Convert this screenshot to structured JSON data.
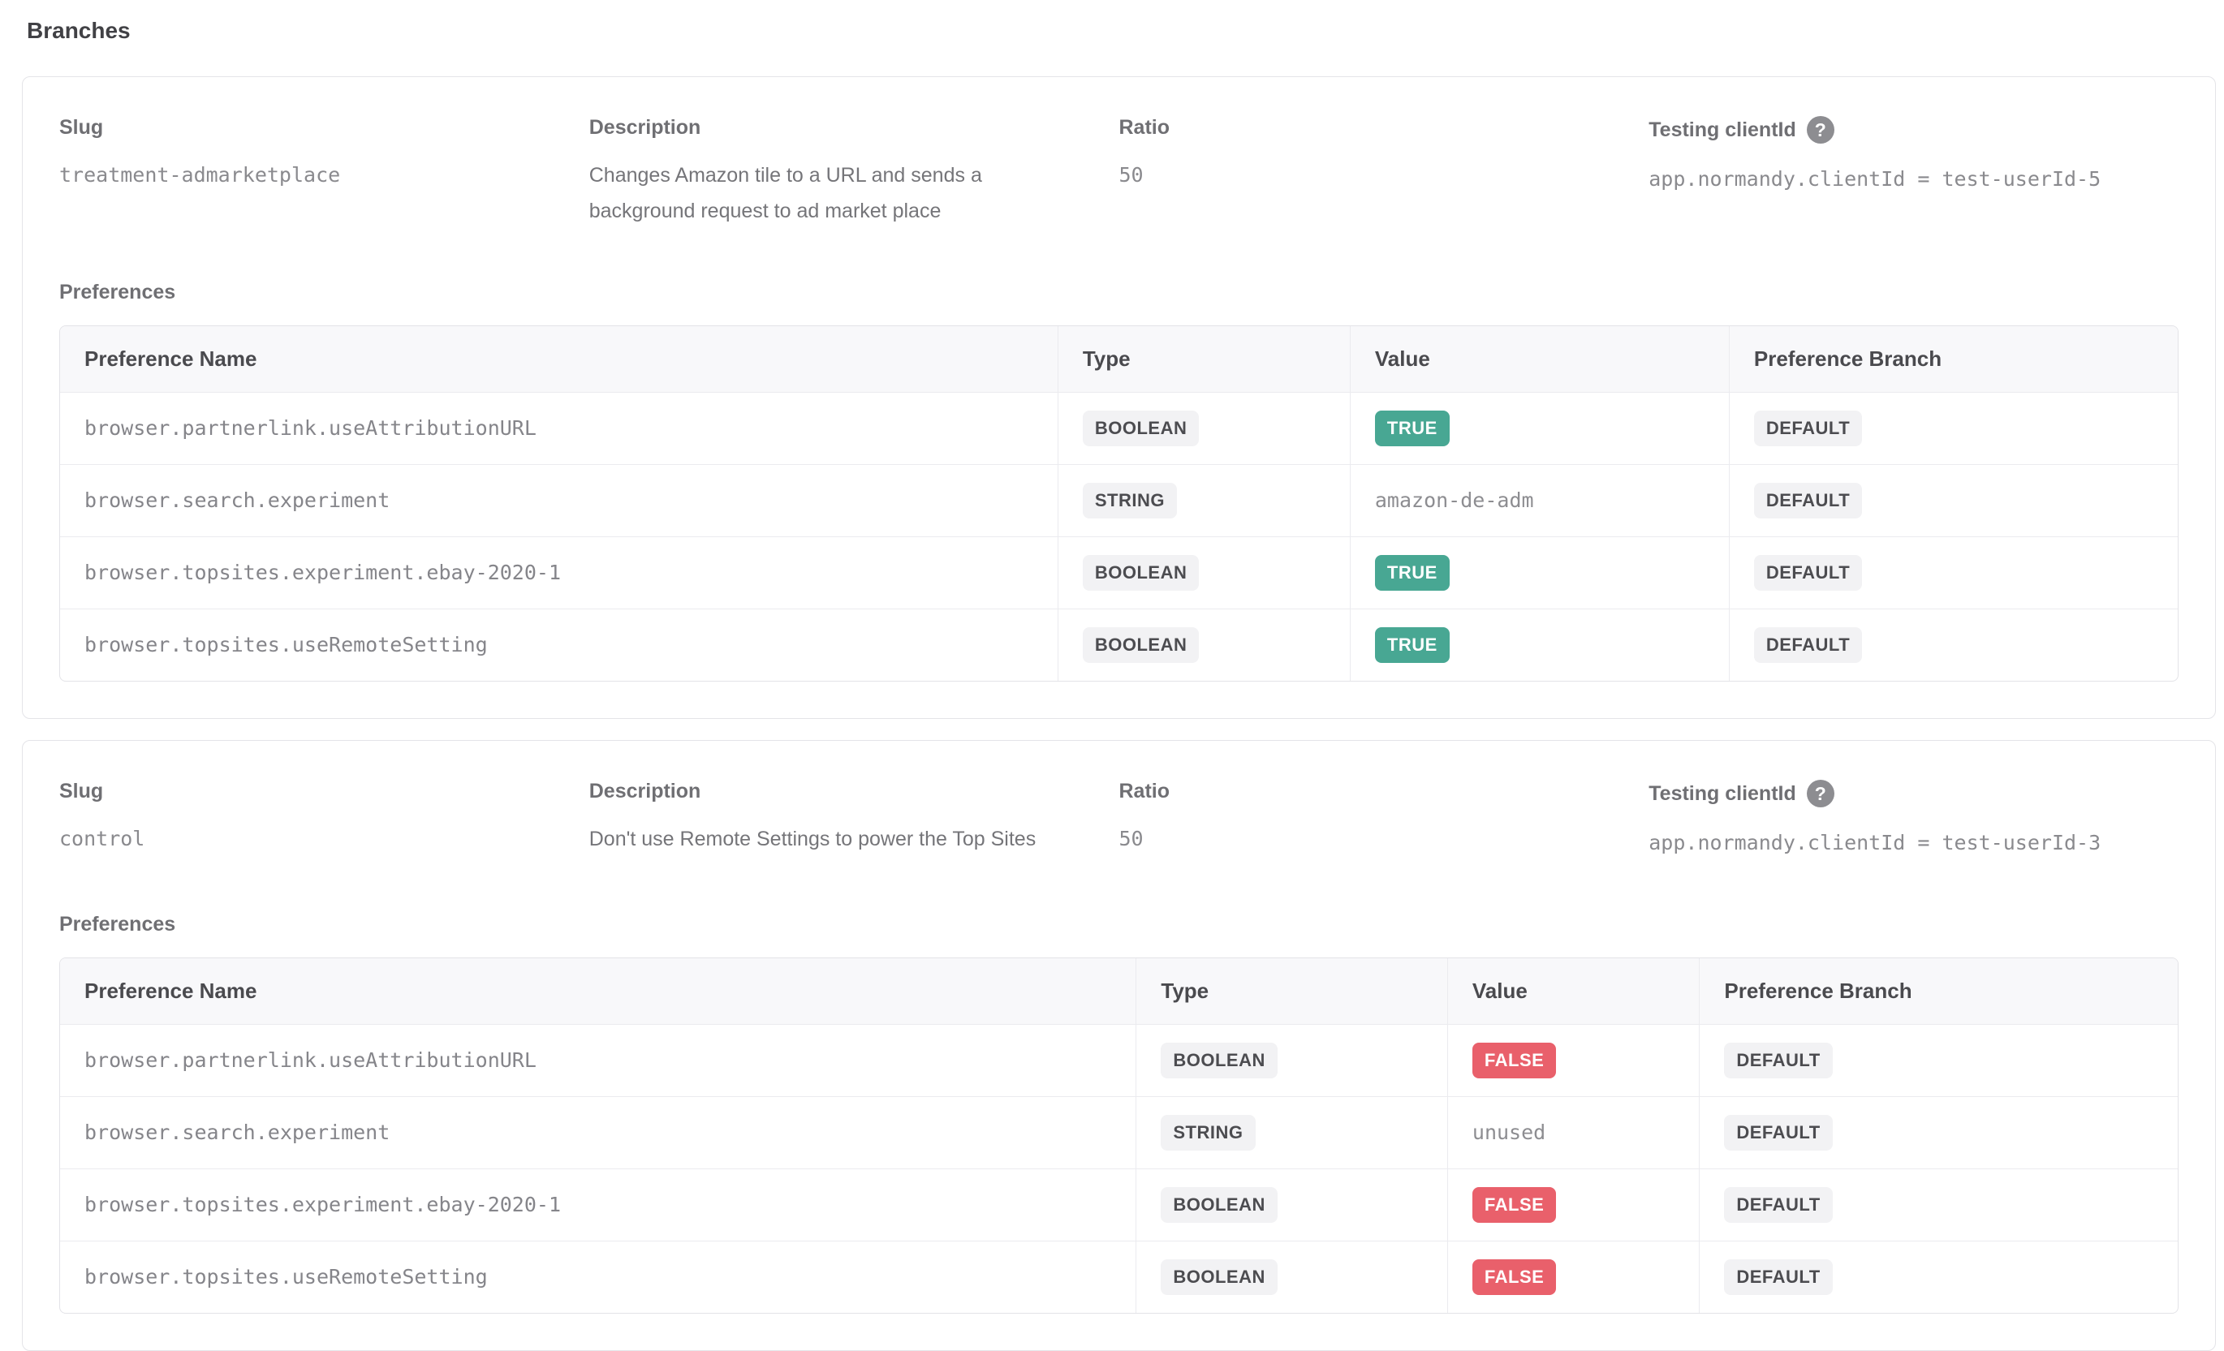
{
  "page": {
    "title": "Branches"
  },
  "labels": {
    "slug": "Slug",
    "description": "Description",
    "ratio": "Ratio",
    "testing_client_id": "Testing clientId",
    "help_icon": "?",
    "preferences": "Preferences"
  },
  "table_headers": {
    "preference_name": "Preference Name",
    "type": "Type",
    "value": "Value",
    "preference_branch": "Preference Branch"
  },
  "colors": {
    "true_badge": "#48a793",
    "false_badge": "#e9606b",
    "neutral_badge_bg": "#f2f2f4",
    "header_row_bg": "#f8f8fa"
  },
  "branches": [
    {
      "slug": "treatment-admarketplace",
      "description": "Changes Amazon tile to a URL and sends a background request to ad market place",
      "ratio": "50",
      "testing_client_id": "app.normandy.clientId = test-userId-5",
      "preferences": [
        {
          "name": "browser.partnerlink.useAttributionURL",
          "type": "BOOLEAN",
          "value": "TRUE",
          "value_style": "badge-true",
          "branch": "DEFAULT"
        },
        {
          "name": "browser.search.experiment",
          "type": "STRING",
          "value": "amazon-de-adm",
          "value_style": "plain",
          "branch": "DEFAULT"
        },
        {
          "name": "browser.topsites.experiment.ebay-2020-1",
          "type": "BOOLEAN",
          "value": "TRUE",
          "value_style": "badge-true",
          "branch": "DEFAULT"
        },
        {
          "name": "browser.topsites.useRemoteSetting",
          "type": "BOOLEAN",
          "value": "TRUE",
          "value_style": "badge-true",
          "branch": "DEFAULT"
        }
      ]
    },
    {
      "slug": "control",
      "description": "Don't use Remote Settings to power the Top Sites",
      "ratio": "50",
      "testing_client_id": "app.normandy.clientId = test-userId-3",
      "preferences": [
        {
          "name": "browser.partnerlink.useAttributionURL",
          "type": "BOOLEAN",
          "value": "FALSE",
          "value_style": "badge-false",
          "branch": "DEFAULT"
        },
        {
          "name": "browser.search.experiment",
          "type": "STRING",
          "value": "unused",
          "value_style": "plain",
          "branch": "DEFAULT"
        },
        {
          "name": "browser.topsites.experiment.ebay-2020-1",
          "type": "BOOLEAN",
          "value": "FALSE",
          "value_style": "badge-false",
          "branch": "DEFAULT"
        },
        {
          "name": "browser.topsites.useRemoteSetting",
          "type": "BOOLEAN",
          "value": "FALSE",
          "value_style": "badge-false",
          "branch": "DEFAULT"
        }
      ]
    }
  ]
}
